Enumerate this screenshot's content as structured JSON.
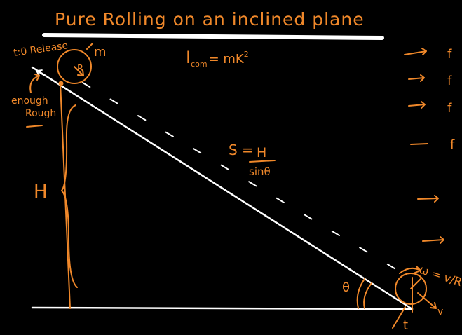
{
  "title": "Pure Rolling on an inclined plane",
  "moment_of_inertia": {
    "lhs": "I",
    "sub": "com",
    "rhs": "= mK",
    "sup": "2"
  },
  "start_label": "t:0 Release",
  "mass_label": "m",
  "radius_label": "R",
  "surface_note": {
    "line1": "enough",
    "line2": "Rough"
  },
  "height_label": "H",
  "distance_label": {
    "lhs": "S =",
    "num": "H",
    "den": "sinθ"
  },
  "angle_label": "θ",
  "omega_label": "ω = v/R",
  "velocity_label": "v",
  "time_label": "t",
  "side_marks": [
    "f",
    "f",
    "f",
    "f"
  ],
  "colors": {
    "ink": "#f0882a",
    "chalk": "#ffffff",
    "background": "#000000"
  }
}
